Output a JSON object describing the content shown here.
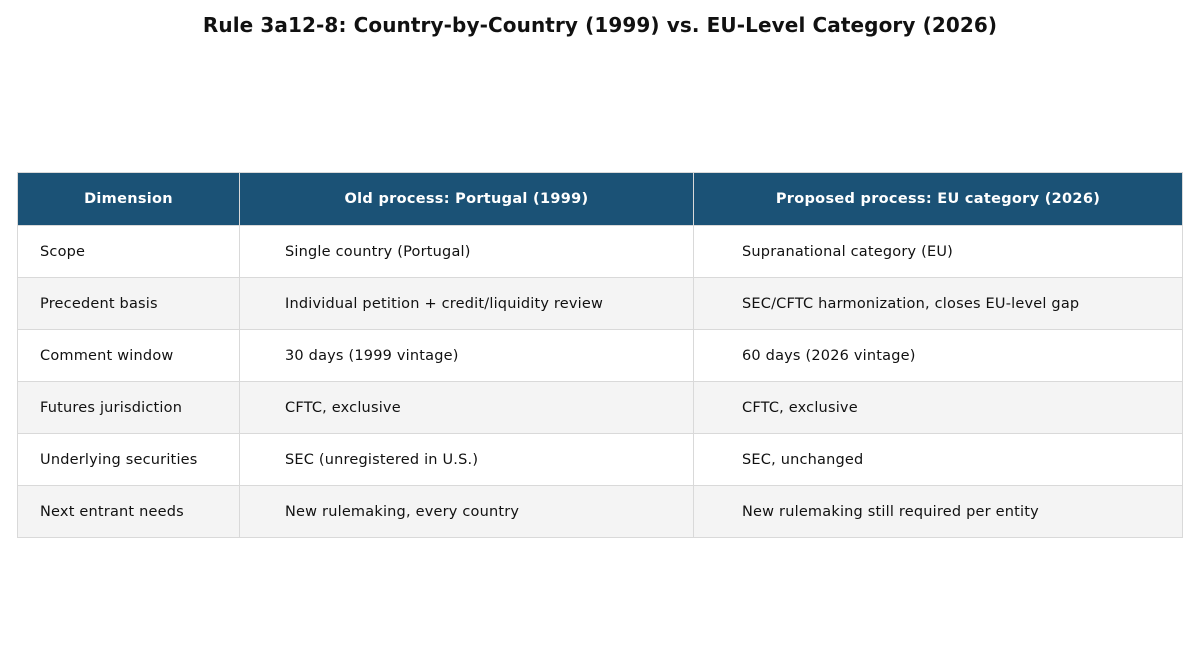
{
  "chart_data": {
    "type": "table",
    "title": "Rule 3a12-8: Country-by-Country (1999) vs. EU-Level Category (2026)",
    "columns": [
      "Dimension",
      "Old process: Portugal (1999)",
      "Proposed process: EU category (2026)"
    ],
    "rows": [
      [
        "Scope",
        "Single country (Portugal)",
        "Supranational category (EU)"
      ],
      [
        "Precedent basis",
        "Individual petition + credit/liquidity review",
        "SEC/CFTC harmonization, closes EU-level gap"
      ],
      [
        "Comment window",
        "30 days (1999 vintage)",
        "60 days (2026 vintage)"
      ],
      [
        "Futures jurisdiction",
        "CFTC, exclusive",
        "CFTC, exclusive"
      ],
      [
        "Underlying securities",
        "SEC (unregistered in U.S.)",
        "SEC, unchanged"
      ],
      [
        "Next entrant needs",
        "New rulemaking, every country",
        "New rulemaking still required per entity"
      ]
    ],
    "colors": {
      "header_bg": "#1b5276",
      "header_text": "#ffffff",
      "alt_row": "#f4f4f4",
      "grid": "#d9d9d9"
    }
  }
}
